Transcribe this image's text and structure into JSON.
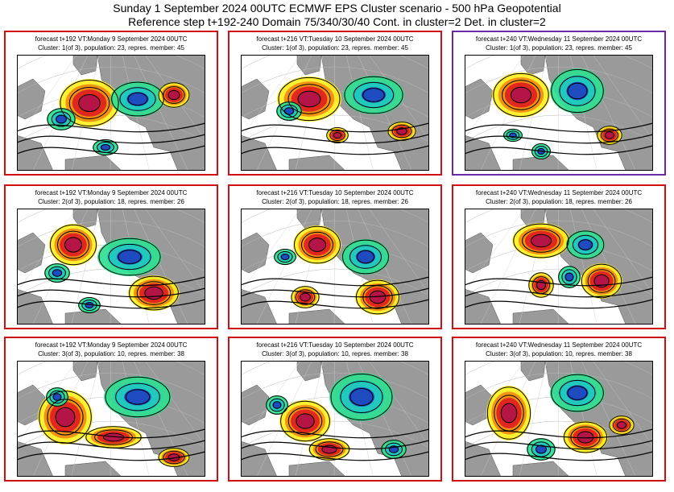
{
  "header": {
    "line1": "Sunday 1 September 2024 00UTC ECMWF EPS Cluster scenario - 500 hPa Geopotential",
    "line2": "Reference step t+192-240 Domain 75/340/30/40 Cont. in cluster=2 Det. in cluster=2"
  },
  "colors": {
    "frame": "#d01010",
    "frame_selected": "#6a2aa8",
    "land": "#9a9a9a",
    "positive_strong": "#b0124a",
    "positive": "#e02020",
    "positive_weak": "#f08a10",
    "positive_faint": "#fff020",
    "negative": "#30e090",
    "negative_strong": "#20c8c0",
    "negative_deep": "#2040c0"
  },
  "panels": [
    {
      "row": 1,
      "col": 1,
      "selected": false,
      "title": "forecast t+192 VT:Monday 9 September 2024 00UTC",
      "subtitle": "Cluster: 1(of 3), population: 23, repres. member: 45"
    },
    {
      "row": 1,
      "col": 2,
      "selected": false,
      "title": "forecast t+216 VT:Tuesday 10 September 2024 00UTC",
      "subtitle": "Cluster: 1(of 3), population: 23, repres. member: 45"
    },
    {
      "row": 1,
      "col": 3,
      "selected": true,
      "title": "forecast t+240 VT:Wednesday 11 September 2024 00UTC",
      "subtitle": "Cluster: 1(of 3), population: 23, repres. member: 45"
    },
    {
      "row": 2,
      "col": 1,
      "selected": false,
      "title": "forecast t+192 VT:Monday 9 September 2024 00UTC",
      "subtitle": "Cluster: 2(of 3), population: 18, repres. member: 26"
    },
    {
      "row": 2,
      "col": 2,
      "selected": false,
      "title": "forecast t+216 VT:Tuesday 10 September 2024 00UTC",
      "subtitle": "Cluster: 2(of 3), population: 18, repres. member: 26"
    },
    {
      "row": 2,
      "col": 3,
      "selected": false,
      "title": "forecast t+240 VT:Wednesday 11 September 2024 00UTC",
      "subtitle": "Cluster: 2(of 3), population: 18, repres. member: 26"
    },
    {
      "row": 3,
      "col": 1,
      "selected": false,
      "title": "forecast t+192 VT:Monday 9 September 2024 00UTC",
      "subtitle": "Cluster: 3(of 3), population: 10, repres. member: 38"
    },
    {
      "row": 3,
      "col": 2,
      "selected": false,
      "title": "forecast t+216 VT:Tuesday 10 September 2024 00UTC",
      "subtitle": "Cluster: 3(of 3), population: 10, repres. member: 38"
    },
    {
      "row": 3,
      "col": 3,
      "selected": false,
      "title": "forecast t+240 VT:Wednesday 11 September 2024 00UTC",
      "subtitle": "Cluster: 3(of 3), population: 10, repres. member: 38"
    }
  ]
}
